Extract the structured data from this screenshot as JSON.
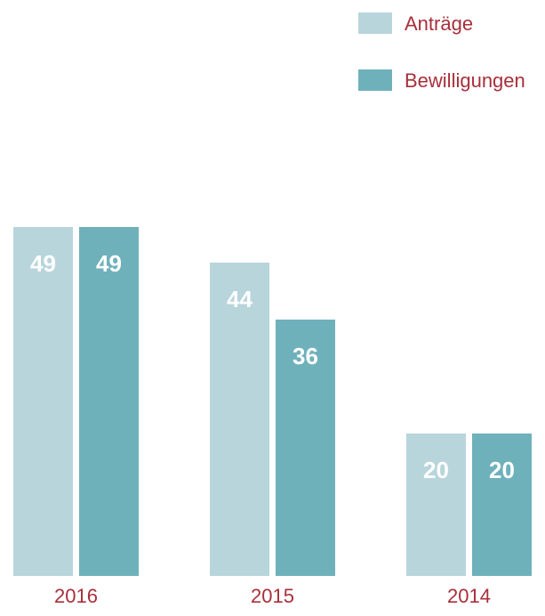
{
  "chart_data": {
    "type": "bar",
    "categories": [
      "2016",
      "2015",
      "2014"
    ],
    "series": [
      {
        "name": "Anträge",
        "color": "#b9d5dc",
        "values": [
          49,
          44,
          20
        ]
      },
      {
        "name": "Bewilligungen",
        "color": "#6fb1bb",
        "values": [
          49,
          36,
          20
        ]
      }
    ],
    "legend": "top-right"
  }
}
